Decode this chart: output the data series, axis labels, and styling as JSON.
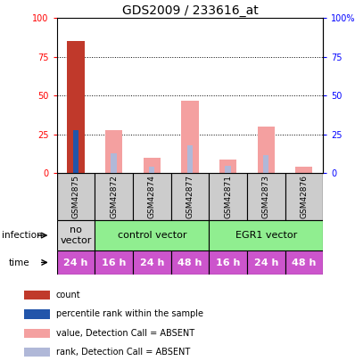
{
  "title": "GDS2009 / 233616_at",
  "samples": [
    "GSM42875",
    "GSM42872",
    "GSM42874",
    "GSM42877",
    "GSM42871",
    "GSM42873",
    "GSM42876"
  ],
  "count_values": [
    85,
    0,
    0,
    0,
    0,
    0,
    0
  ],
  "rank_values": [
    28,
    0,
    0,
    0,
    0,
    0,
    0
  ],
  "absent_value_bars": [
    0,
    28,
    10,
    47,
    9,
    30,
    4
  ],
  "absent_rank_bars": [
    0,
    13,
    4,
    18,
    5,
    12,
    0
  ],
  "ylim": [
    0,
    100
  ],
  "yticks": [
    0,
    25,
    50,
    75,
    100
  ],
  "ytick_labels_left": [
    "0",
    "25",
    "50",
    "75",
    "100"
  ],
  "ytick_labels_right": [
    "0",
    "25",
    "50",
    "75",
    "100%"
  ],
  "color_count": "#c0392b",
  "color_rank": "#2255aa",
  "color_absent_value": "#f4a0a0",
  "color_absent_rank": "#b0b8d8",
  "infection_groups": [
    {
      "label": "no\nvector",
      "start": 0,
      "end": 1,
      "color": "#d3d3d3"
    },
    {
      "label": "control vector",
      "start": 1,
      "end": 4,
      "color": "#90ee90"
    },
    {
      "label": "EGR1 vector",
      "start": 4,
      "end": 7,
      "color": "#90ee90"
    }
  ],
  "time_labels": [
    "24 h",
    "16 h",
    "24 h",
    "48 h",
    "16 h",
    "24 h",
    "48 h"
  ],
  "time_color": "#cc55cc",
  "sample_bg_color": "#cccccc",
  "legend_items": [
    {
      "color": "#c0392b",
      "label": "count"
    },
    {
      "color": "#2255aa",
      "label": "percentile rank within the sample"
    },
    {
      "color": "#f4a0a0",
      "label": "value, Detection Call = ABSENT"
    },
    {
      "color": "#b0b8d8",
      "label": "rank, Detection Call = ABSENT"
    }
  ],
  "bar_width": 0.45,
  "rank_bar_width": 0.15
}
